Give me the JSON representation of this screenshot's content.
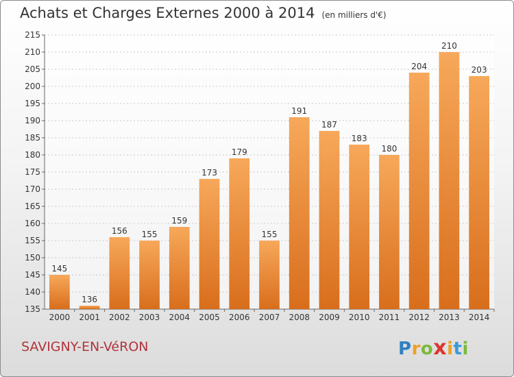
{
  "chart_data": {
    "type": "bar",
    "title": "Achats et Charges Externes 2000 à 2014",
    "subtitle": "(en milliers d'€)",
    "categories": [
      "2000",
      "2001",
      "2002",
      "2003",
      "2004",
      "2005",
      "2006",
      "2007",
      "2008",
      "2009",
      "2010",
      "2011",
      "2012",
      "2013",
      "2014"
    ],
    "values": [
      145,
      136,
      156,
      155,
      159,
      173,
      179,
      155,
      191,
      187,
      183,
      180,
      204,
      210,
      203
    ],
    "ylim": [
      135,
      215
    ],
    "yticks": [
      135,
      140,
      145,
      150,
      155,
      160,
      165,
      170,
      175,
      180,
      185,
      190,
      195,
      200,
      205,
      210,
      215
    ],
    "grid": true,
    "bar_color_top": "#f7a85a",
    "bar_color_bottom": "#d86e1c"
  },
  "footer": {
    "place": "SAVIGNY-EN-VéRON"
  },
  "brand": {
    "letters": [
      "P",
      "r",
      "o",
      "x",
      "i",
      "t",
      "i"
    ],
    "colors": [
      "#2f7fc1",
      "#f0a020",
      "#7cb93a",
      "#d9362e",
      "#f0a020",
      "#3a9ad9",
      "#7cb93a"
    ]
  }
}
